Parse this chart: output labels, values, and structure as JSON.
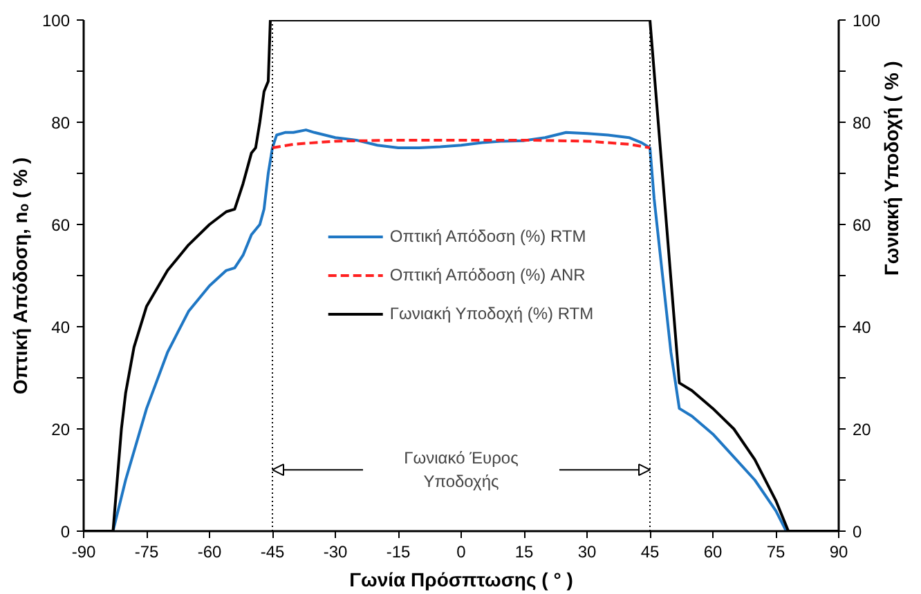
{
  "chart_data": {
    "type": "line",
    "xlabel": "Γωνία Πρόσπτωσης ( ° )",
    "ylabel": "Οπτική Απόδοση, nₒ ( % )",
    "y2label": "Γωνιακή Υποδοχή ( % )",
    "xlim": [
      -90,
      90
    ],
    "ylim": [
      0,
      100
    ],
    "y2lim": [
      0,
      100
    ],
    "xticks": [
      -90,
      -75,
      -60,
      -45,
      -30,
      -15,
      0,
      15,
      30,
      45,
      60,
      75,
      90
    ],
    "yticks": [
      0,
      {
        "value": 10,
        "label": null
      },
      20,
      {
        "value": 30,
        "label": null
      },
      40,
      {
        "value": 50,
        "label": null
      },
      60,
      {
        "value": 70,
        "label": null
      },
      80,
      {
        "value": 90,
        "label": null
      },
      100
    ],
    "y2ticks": [
      0,
      {
        "value": 10,
        "label": null
      },
      20,
      {
        "value": 30,
        "label": null
      },
      40,
      {
        "value": 50,
        "label": null
      },
      60,
      {
        "value": 70,
        "label": null
      },
      80,
      {
        "value": 90,
        "label": null
      },
      100
    ],
    "grid": false,
    "legend": "center",
    "series": [
      {
        "name": "Οπτική Απόδοση (%) RTM",
        "color": "#1f77c4",
        "line_style": "solid",
        "x": [
          -90,
          -83,
          -80,
          -75,
          -70,
          -65,
          -60,
          -56,
          -54,
          -52,
          -50,
          -48,
          -47,
          -46,
          -45,
          -44,
          -42,
          -40,
          -37,
          -35,
          -30,
          -25,
          -20,
          -15,
          -10,
          -5,
          0,
          5,
          10,
          15,
          20,
          25,
          30,
          35,
          40,
          43,
          45,
          46,
          48,
          50,
          52,
          55,
          60,
          65,
          70,
          75,
          77.5,
          90
        ],
        "values": [
          0,
          0,
          10,
          24,
          35,
          43,
          48,
          51,
          51.5,
          54,
          58,
          60,
          63,
          70,
          75,
          77.5,
          78,
          78,
          78.5,
          78,
          77,
          76.5,
          75.5,
          75,
          75,
          75.2,
          75.5,
          76,
          76.3,
          76.4,
          77,
          78,
          77.8,
          77.5,
          77,
          76,
          75,
          65,
          50,
          35,
          24,
          22.5,
          19,
          14.5,
          10,
          4,
          0,
          0
        ]
      },
      {
        "name": "Οπτική Απόδοση (%) ANR",
        "color": "#ff2020",
        "line_style": "dashed",
        "x": [
          -45,
          -40,
          -30,
          -15,
          0,
          15,
          30,
          40,
          45
        ],
        "values": [
          75,
          75.7,
          76.3,
          76.5,
          76.5,
          76.5,
          76.3,
          75.7,
          75
        ]
      },
      {
        "name": "Γωνιακή Υποδοχή (%) RTM",
        "color": "#000000",
        "line_style": "solid",
        "x": [
          -90,
          -83,
          -82,
          -81,
          -80,
          -78,
          -75,
          -70,
          -65,
          -60,
          -56,
          -54,
          -52,
          -50,
          -49,
          -48,
          -47,
          -46,
          -45.5,
          -45,
          45,
          52,
          55,
          60,
          65,
          70,
          75,
          78,
          90
        ],
        "values": [
          0,
          0,
          10,
          20,
          27,
          36,
          44,
          51,
          56,
          60,
          62.5,
          63,
          68,
          74,
          75,
          80,
          86,
          88,
          100,
          100,
          100,
          29,
          27.5,
          24,
          20,
          14,
          6,
          0,
          0
        ]
      }
    ],
    "ref_lines": [
      {
        "axis": "x",
        "value": -45,
        "color": "#000000",
        "line_style": "dotted"
      },
      {
        "axis": "x",
        "value": 45,
        "color": "#000000",
        "line_style": "dotted"
      }
    ],
    "annotations": [
      "Γωνιακό Έυρος\nΥποδοχής"
    ]
  }
}
